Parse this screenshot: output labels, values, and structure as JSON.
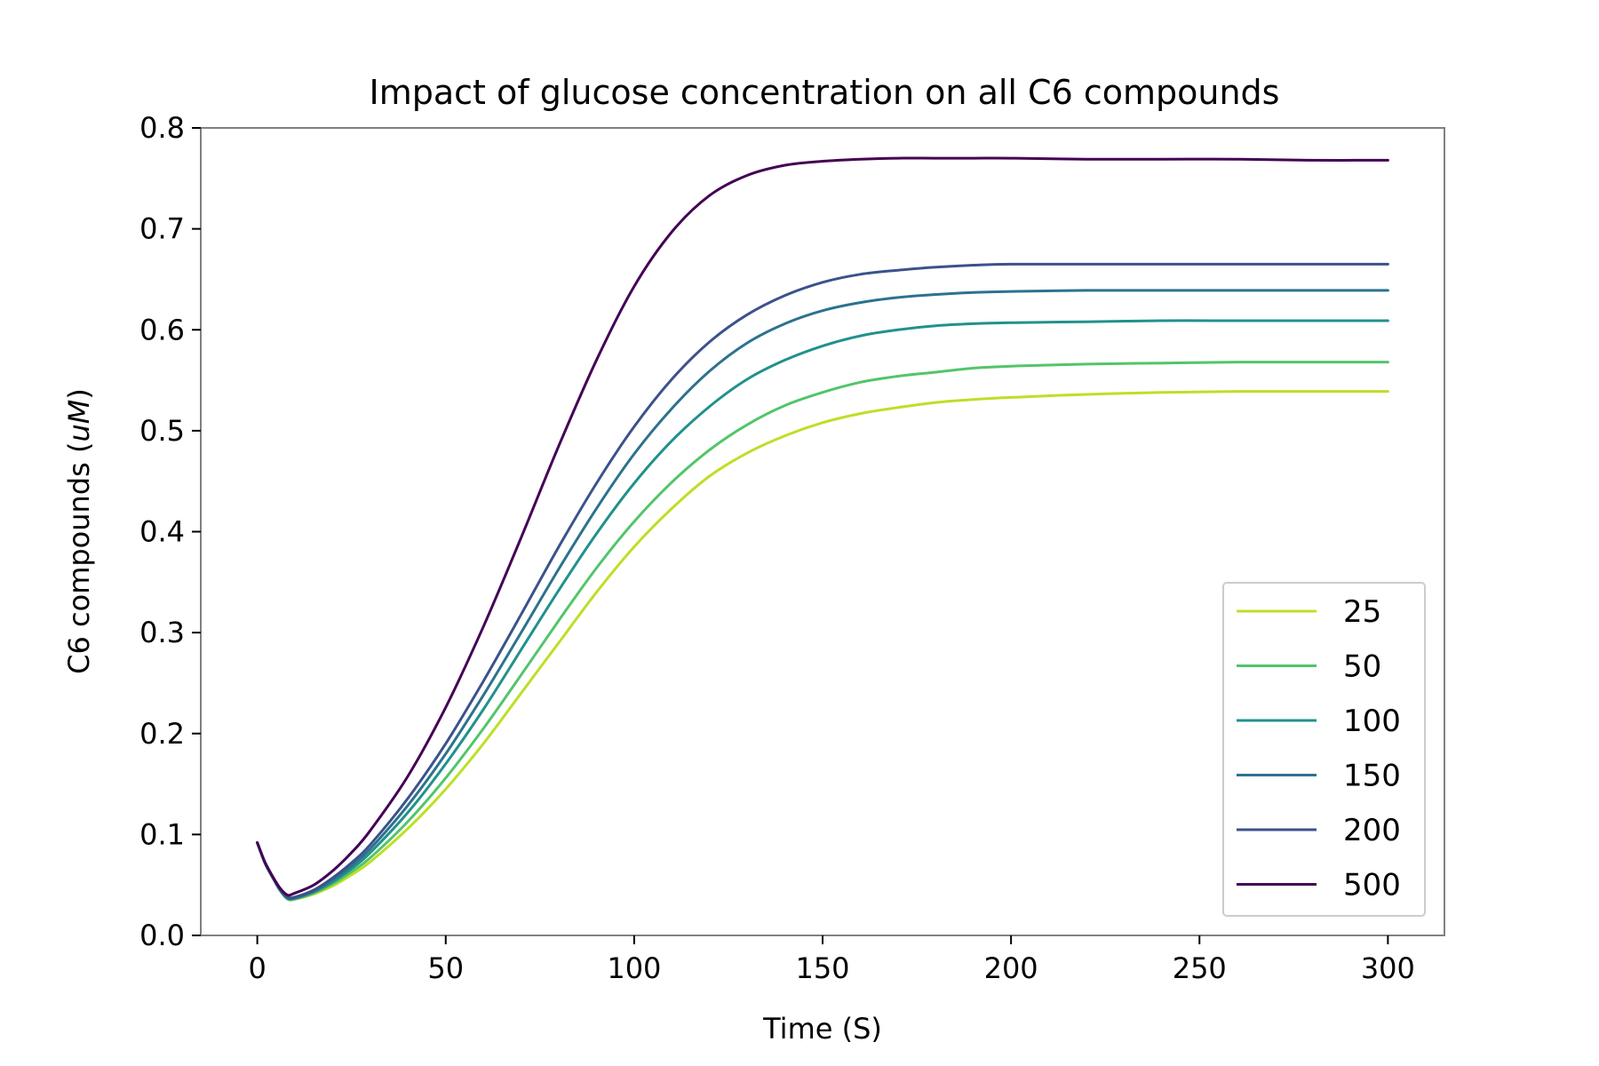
{
  "chart_data": {
    "type": "line",
    "title": "Impact of glucose concentration on all C6 compounds",
    "xlabel": "Time (S)",
    "ylabel_prefix": "C6 compounds (",
    "ylabel_unit": "uM",
    "ylabel_suffix": ")",
    "xlim": [
      -15,
      315
    ],
    "ylim": [
      0,
      0.8
    ],
    "xticks": [
      0,
      50,
      100,
      150,
      200,
      250,
      300
    ],
    "xtick_labels": [
      "0",
      "50",
      "100",
      "150",
      "200",
      "250",
      "300"
    ],
    "yticks": [
      0.0,
      0.1,
      0.2,
      0.3,
      0.4,
      0.5,
      0.6,
      0.7,
      0.8
    ],
    "ytick_labels": [
      "0.0",
      "0.1",
      "0.2",
      "0.3",
      "0.4",
      "0.5",
      "0.6",
      "0.7",
      "0.8"
    ],
    "grid": false,
    "legend_position": "lower-right",
    "x": [
      0,
      2,
      4,
      6,
      8,
      10,
      15,
      20,
      25,
      30,
      40,
      50,
      60,
      70,
      80,
      90,
      100,
      110,
      120,
      130,
      140,
      150,
      160,
      170,
      180,
      190,
      200,
      220,
      240,
      260,
      280,
      300
    ],
    "series": [
      {
        "name": "25",
        "color": "#bddf26",
        "values": [
          0.092,
          0.072,
          0.058,
          0.045,
          0.036,
          0.036,
          0.041,
          0.049,
          0.06,
          0.073,
          0.106,
          0.145,
          0.19,
          0.24,
          0.29,
          0.34,
          0.385,
          0.423,
          0.455,
          0.478,
          0.495,
          0.508,
          0.517,
          0.523,
          0.528,
          0.531,
          0.533,
          0.536,
          0.538,
          0.539,
          0.539,
          0.539
        ]
      },
      {
        "name": "50",
        "color": "#52c569",
        "values": [
          0.092,
          0.072,
          0.058,
          0.045,
          0.036,
          0.036,
          0.042,
          0.051,
          0.063,
          0.077,
          0.113,
          0.156,
          0.205,
          0.258,
          0.312,
          0.364,
          0.41,
          0.449,
          0.481,
          0.506,
          0.525,
          0.538,
          0.548,
          0.554,
          0.558,
          0.562,
          0.564,
          0.566,
          0.567,
          0.568,
          0.568,
          0.568
        ]
      },
      {
        "name": "100",
        "color": "#21918c",
        "values": [
          0.092,
          0.072,
          0.058,
          0.045,
          0.037,
          0.037,
          0.043,
          0.053,
          0.066,
          0.082,
          0.122,
          0.17,
          0.224,
          0.283,
          0.342,
          0.398,
          0.448,
          0.49,
          0.524,
          0.551,
          0.57,
          0.584,
          0.594,
          0.6,
          0.604,
          0.606,
          0.607,
          0.608,
          0.609,
          0.609,
          0.609,
          0.609
        ]
      },
      {
        "name": "150",
        "color": "#2c728e",
        "values": [
          0.092,
          0.072,
          0.058,
          0.045,
          0.037,
          0.037,
          0.044,
          0.055,
          0.069,
          0.086,
          0.129,
          0.18,
          0.238,
          0.3,
          0.363,
          0.423,
          0.477,
          0.522,
          0.559,
          0.587,
          0.606,
          0.619,
          0.627,
          0.632,
          0.635,
          0.637,
          0.638,
          0.639,
          0.639,
          0.639,
          0.639,
          0.639
        ]
      },
      {
        "name": "200",
        "color": "#3b528b",
        "values": [
          0.092,
          0.072,
          0.058,
          0.046,
          0.038,
          0.038,
          0.045,
          0.057,
          0.072,
          0.09,
          0.136,
          0.19,
          0.252,
          0.318,
          0.385,
          0.448,
          0.504,
          0.551,
          0.588,
          0.615,
          0.634,
          0.647,
          0.655,
          0.659,
          0.662,
          0.664,
          0.665,
          0.665,
          0.665,
          0.665,
          0.665,
          0.665
        ]
      },
      {
        "name": "500",
        "color": "#440154",
        "values": [
          0.092,
          0.073,
          0.059,
          0.047,
          0.04,
          0.042,
          0.05,
          0.064,
          0.082,
          0.104,
          0.158,
          0.226,
          0.306,
          0.394,
          0.485,
          0.57,
          0.643,
          0.697,
          0.733,
          0.753,
          0.763,
          0.767,
          0.769,
          0.77,
          0.77,
          0.77,
          0.77,
          0.769,
          0.769,
          0.769,
          0.768,
          0.768
        ]
      }
    ]
  }
}
